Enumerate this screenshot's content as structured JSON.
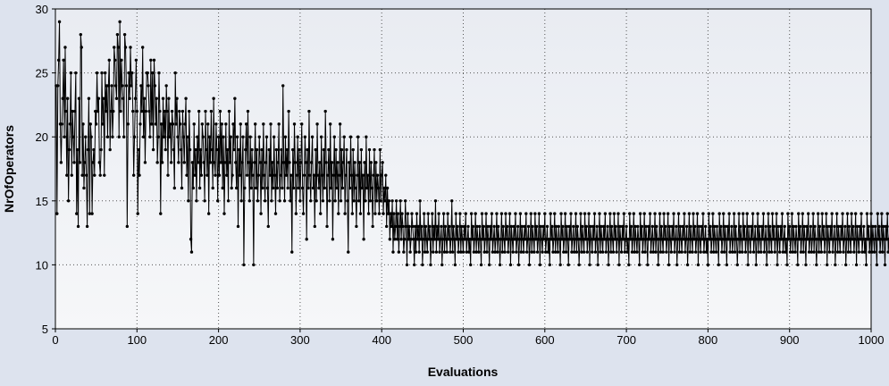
{
  "chart_data": {
    "type": "line",
    "title": "",
    "xlabel": "Evaluations",
    "ylabel": "NrOfOperators",
    "xlim": [
      0,
      1000
    ],
    "ylim": [
      5,
      30
    ],
    "x_ticks": [
      "0",
      "100",
      "200",
      "300",
      "400",
      "500",
      "600",
      "700",
      "800",
      "900",
      "1000"
    ],
    "y_ticks": [
      "5",
      "10",
      "15",
      "20",
      "25",
      "30"
    ],
    "grid": true,
    "legend": "none",
    "line_color": "#000000",
    "marker": "circle",
    "series": [
      {
        "x_start": 1,
        "x_step": 1,
        "values": [
          24,
          14,
          24,
          26,
          29,
          21,
          18,
          21,
          23,
          26,
          20,
          27,
          22,
          17,
          23,
          15,
          19,
          21,
          25,
          17,
          22,
          20,
          18,
          22,
          25,
          14,
          19,
          13,
          23,
          18,
          28,
          27,
          17,
          21,
          16,
          18,
          20,
          17,
          13,
          19,
          23,
          14,
          21,
          20,
          14,
          18,
          19,
          17,
          22,
          21,
          25,
          22,
          23,
          18,
          17,
          19,
          25,
          21,
          23,
          17,
          25,
          22,
          24,
          20,
          24,
          26,
          19,
          22,
          24,
          20,
          22,
          27,
          26,
          24,
          23,
          28,
          27,
          20,
          29,
          22,
          26,
          24,
          23,
          20,
          28,
          27,
          24,
          13,
          21,
          25,
          23,
          27,
          24,
          25,
          22,
          17,
          20,
          23,
          26,
          22,
          14,
          19,
          17,
          21,
          24,
          22,
          27,
          20,
          23,
          18,
          22,
          25,
          25,
          24,
          22,
          20,
          26,
          21,
          25,
          19,
          26,
          24,
          21,
          23,
          18,
          20,
          25,
          22,
          14,
          21,
          18,
          23,
          20,
          22,
          19,
          24,
          22,
          17,
          23,
          20,
          21,
          18,
          22,
          21,
          19,
          16,
          25,
          21,
          23,
          20,
          18,
          22,
          21,
          19,
          16,
          22,
          20,
          18,
          21,
          23,
          17,
          20,
          15,
          22,
          19,
          12,
          11,
          18,
          16,
          21,
          17,
          19,
          15,
          20,
          18,
          22,
          16,
          19,
          17,
          21,
          20,
          18,
          15,
          22,
          19,
          17,
          21,
          14,
          20,
          18,
          22,
          19,
          16,
          23,
          18,
          17,
          21,
          19,
          15,
          20,
          17,
          22,
          18,
          21,
          16,
          20,
          14,
          18,
          21,
          17,
          19,
          15,
          22,
          18,
          20,
          16,
          17,
          21,
          19,
          23,
          18,
          16,
          20,
          13,
          19,
          17,
          21,
          15,
          18,
          20,
          10,
          16,
          19,
          21,
          17,
          22,
          18,
          15,
          20,
          16,
          19,
          17,
          10,
          18,
          21,
          16,
          19,
          15,
          17,
          20,
          18,
          14,
          19,
          16,
          21,
          17,
          15,
          18,
          20,
          16,
          13,
          19,
          17,
          21,
          15,
          18,
          16,
          20,
          17,
          14,
          19,
          16,
          18,
          21,
          15,
          17,
          19,
          16,
          24,
          18,
          15,
          20,
          17,
          19,
          16,
          22,
          18,
          15,
          17,
          11,
          19,
          16,
          21,
          18,
          14,
          17,
          20,
          16,
          19,
          15,
          18,
          21,
          16,
          14,
          17,
          20,
          18,
          12,
          19,
          16,
          22,
          17,
          15,
          18,
          20,
          16,
          17,
          13,
          19,
          15,
          21,
          17,
          16,
          18,
          14,
          20,
          17,
          15,
          19,
          16,
          22,
          18,
          13,
          17,
          19,
          15,
          21,
          16,
          18,
          12,
          17,
          20,
          15,
          19,
          16,
          18,
          14,
          17,
          21,
          15,
          19,
          16,
          18,
          20,
          14,
          17,
          19,
          15,
          11,
          18,
          16,
          20,
          17,
          14,
          19,
          15,
          18,
          16,
          13,
          17,
          20,
          15,
          18,
          14,
          19,
          16,
          17,
          12,
          18,
          15,
          20,
          16,
          17,
          14,
          19,
          15,
          18,
          16,
          13,
          17,
          19,
          14,
          18,
          15,
          17,
          16,
          14,
          19,
          15,
          17,
          18,
          14,
          16,
          15,
          17,
          13,
          16,
          14,
          15,
          12,
          14,
          13,
          15,
          11,
          14,
          12,
          13,
          15,
          12,
          14,
          11,
          13,
          15,
          12,
          14,
          13,
          11,
          12,
          15,
          13,
          10,
          14,
          12,
          13,
          11,
          12,
          14,
          13,
          12,
          10,
          13,
          11,
          14,
          12,
          13,
          11,
          15,
          12,
          13,
          10,
          12,
          14,
          11,
          13,
          12,
          11,
          14,
          12,
          13,
          10,
          12,
          14,
          11,
          13,
          12,
          15,
          11,
          13,
          12,
          14,
          11,
          12,
          13,
          10,
          12,
          14,
          11,
          13,
          12,
          11,
          14,
          12,
          13,
          11,
          12,
          15,
          11,
          13,
          12,
          10,
          14,
          12,
          13,
          11,
          12,
          14,
          11,
          13,
          12,
          11,
          13,
          12,
          14,
          11,
          12,
          13,
          11,
          12,
          10,
          14,
          12,
          13,
          11,
          12,
          14,
          11,
          13,
          12,
          11,
          13,
          12,
          10,
          14,
          12,
          13,
          11,
          12,
          14,
          11,
          13,
          12,
          10,
          13,
          12,
          14,
          11,
          12,
          13,
          11,
          12,
          14,
          11,
          13,
          12,
          10,
          12,
          14,
          11,
          13,
          12,
          11,
          14,
          12,
          13,
          11,
          12,
          14,
          10,
          13,
          12,
          11,
          13,
          12,
          14,
          11,
          12,
          13,
          10,
          12,
          14,
          11,
          13,
          12,
          11,
          13,
          12,
          14,
          11,
          12,
          13,
          10,
          12,
          14,
          11,
          13,
          12,
          11,
          14,
          12,
          13,
          11,
          12,
          14,
          10,
          13,
          12,
          11,
          13,
          12,
          14,
          11,
          12,
          13,
          11,
          12,
          10,
          14,
          12,
          13,
          11,
          12,
          14,
          11,
          13,
          12,
          11,
          13,
          12,
          10,
          14,
          12,
          13,
          11,
          12,
          14,
          11,
          13,
          12,
          10,
          13,
          12,
          14,
          11,
          12,
          13,
          11,
          12,
          14,
          11,
          13,
          12,
          10,
          12,
          14,
          11,
          13,
          12,
          11,
          14,
          12,
          13,
          11,
          12,
          14,
          10,
          13,
          12,
          11,
          13,
          12,
          14,
          11,
          12,
          13,
          10,
          12,
          14,
          11,
          13,
          12,
          11,
          13,
          12,
          14,
          11,
          12,
          13,
          10,
          12,
          14,
          11,
          13,
          12,
          11,
          14,
          12,
          13,
          11,
          12,
          14,
          10,
          13,
          12,
          11,
          13,
          12,
          14,
          11,
          12,
          13,
          11,
          12,
          10,
          14,
          12,
          13,
          11,
          12,
          14,
          11,
          13,
          12,
          11,
          13,
          12,
          10,
          14,
          12,
          13,
          11,
          12,
          14,
          11,
          13,
          12,
          10,
          13,
          12,
          14,
          11,
          12,
          13,
          11,
          12,
          14,
          11,
          13,
          12,
          10,
          12,
          14,
          11,
          13,
          12,
          11,
          14,
          12,
          13,
          11,
          12,
          14,
          10,
          13,
          12,
          11,
          13,
          12,
          14,
          11,
          12,
          13,
          10,
          12,
          14,
          11,
          13,
          12,
          11,
          13,
          12,
          14,
          11,
          12,
          13,
          10,
          12,
          14,
          11,
          13,
          12,
          11,
          14,
          12,
          13,
          11,
          12,
          14,
          10,
          13,
          12,
          11,
          13,
          12,
          14,
          11,
          12,
          13,
          11,
          12,
          10,
          14,
          12,
          13,
          11,
          12,
          14,
          11,
          13,
          12,
          11,
          13,
          12,
          10,
          14,
          12,
          13,
          11,
          12,
          14,
          11,
          13,
          12,
          10,
          13,
          12,
          14,
          11,
          12,
          13,
          11,
          12,
          14,
          11,
          13,
          12,
          10,
          12,
          14,
          11,
          13,
          12,
          11,
          14,
          12,
          13,
          11,
          12,
          14,
          10,
          13,
          12,
          11,
          13,
          12,
          14,
          11,
          12,
          13,
          10,
          12,
          14,
          11,
          13,
          12,
          11,
          13,
          12,
          14,
          11,
          12,
          13,
          10,
          12,
          14,
          11,
          13,
          12,
          11,
          14,
          12,
          13,
          11,
          12,
          14,
          10,
          13,
          12,
          11,
          13,
          12,
          14,
          11,
          12,
          13,
          11,
          12,
          10,
          14,
          12,
          13,
          11,
          12,
          14,
          11,
          13,
          12,
          11,
          13,
          12,
          10,
          14,
          12,
          13,
          11,
          12,
          14,
          11,
          13,
          12,
          10,
          13,
          12,
          14,
          11,
          12,
          13,
          11,
          12,
          14,
          11,
          13,
          12,
          10,
          12,
          14,
          11,
          13,
          12,
          11,
          14,
          12,
          13,
          11,
          12,
          14,
          10,
          13,
          12,
          11,
          13,
          12,
          14,
          11,
          12,
          13,
          10,
          12,
          14,
          11,
          13,
          12,
          11,
          13,
          12,
          14,
          11,
          12,
          13,
          10,
          12,
          14,
          11,
          13,
          12,
          11,
          14,
          12,
          13,
          11,
          12,
          14,
          10,
          13,
          12,
          11,
          13,
          12,
          14,
          11,
          12,
          13,
          11,
          12,
          10,
          14,
          12,
          13,
          11,
          12,
          14,
          11,
          13,
          12,
          11,
          13,
          12,
          10,
          14,
          12,
          13,
          11,
          12,
          14,
          11,
          13,
          12,
          10,
          13,
          12,
          14,
          11,
          12,
          13,
          11,
          12,
          14,
          11,
          13,
          12,
          10,
          12,
          14,
          11,
          13,
          12,
          11,
          14,
          12,
          13,
          11,
          12,
          14
        ]
      }
    ]
  }
}
